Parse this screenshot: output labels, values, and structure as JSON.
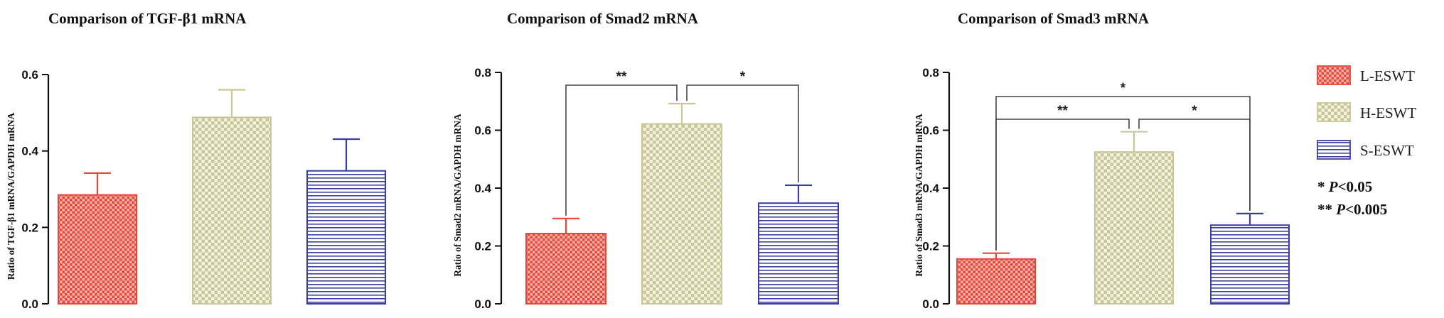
{
  "chart_data": [
    {
      "type": "bar",
      "title": "Comparison of TGF-β1 mRNA",
      "ylabel": "Ratio of TGF-β1 mRNA/GAPDH mRNA",
      "categories": [
        "L-ESWT",
        "H-ESWT",
        "S-ESWT"
      ],
      "values": [
        0.285,
        0.488,
        0.348
      ],
      "errors": [
        0.057,
        0.072,
        0.083
      ],
      "ylim": [
        0,
        0.6
      ],
      "yticks": [
        "0.0",
        "0.2",
        "0.4",
        "0.6"
      ],
      "significance": []
    },
    {
      "type": "bar",
      "title": "Comparison of Smad2 mRNA",
      "ylabel": "Ratio of Smad2 mRNA/GAPDH mRNA",
      "categories": [
        "L-ESWT",
        "H-ESWT",
        "S-ESWT"
      ],
      "values": [
        0.243,
        0.622,
        0.348
      ],
      "errors": [
        0.052,
        0.07,
        0.062
      ],
      "ylim": [
        0,
        0.8
      ],
      "yticks": [
        "0.0",
        "0.2",
        "0.4",
        "0.6",
        "0.8"
      ],
      "significance": [
        {
          "from": 0,
          "to": 1,
          "label": "**"
        },
        {
          "from": 1,
          "to": 2,
          "label": "*"
        }
      ]
    },
    {
      "type": "bar",
      "title": "Comparison of Smad3 mRNA",
      "ylabel": "Ratio of Smad3 mRNA/GAPDH mRNA",
      "categories": [
        "L-ESWT",
        "H-ESWT",
        "S-ESWT"
      ],
      "values": [
        0.155,
        0.525,
        0.272
      ],
      "errors": [
        0.02,
        0.07,
        0.04
      ],
      "ylim": [
        0,
        0.8
      ],
      "yticks": [
        "0.0",
        "0.2",
        "0.4",
        "0.6",
        "0.8"
      ],
      "significance": [
        {
          "from": 0,
          "to": 1,
          "label": "**"
        },
        {
          "from": 1,
          "to": 2,
          "label": "*"
        },
        {
          "from": 0,
          "to": 2,
          "label": "*"
        }
      ]
    }
  ],
  "legend": {
    "items": [
      {
        "label": "L-ESWT",
        "color": "#e8473a",
        "pattern": "checker"
      },
      {
        "label": "H-ESWT",
        "color": "#c9c79a",
        "pattern": "checker"
      },
      {
        "label": "S-ESWT",
        "color": "#3b3fa0",
        "pattern": "stripes"
      }
    ],
    "notes": [
      {
        "stars": "*",
        "p": "P",
        "rel": "<0.05"
      },
      {
        "stars": "**",
        "p": "P",
        "rel": "<0.005"
      }
    ]
  }
}
